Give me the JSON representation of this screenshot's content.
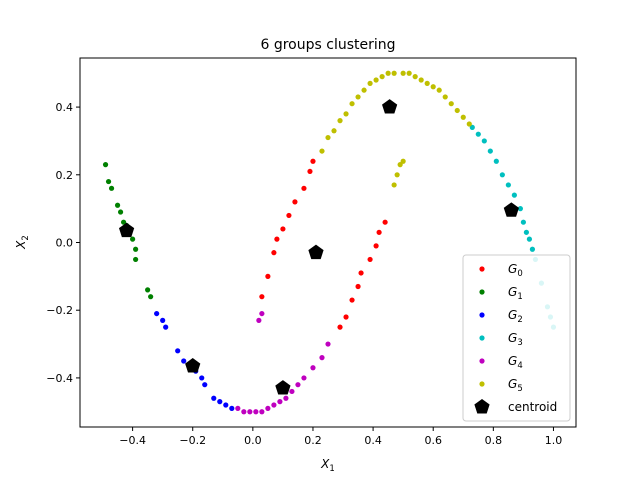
{
  "chart_data": {
    "type": "scatter",
    "title": "6 groups clustering",
    "xlabel": "X_1",
    "ylabel": "X_2",
    "xlim": [
      -0.575,
      1.075
    ],
    "ylim": [
      -0.545,
      0.545
    ],
    "xticks": [
      -0.4,
      -0.2,
      0.0,
      0.2,
      0.4,
      0.6,
      0.8,
      1.0
    ],
    "xtick_labels": [
      "−0.4",
      "−0.2",
      "0.0",
      "0.2",
      "0.4",
      "0.6",
      "0.8",
      "1.0"
    ],
    "yticks": [
      -0.4,
      -0.2,
      0.0,
      0.2,
      0.4
    ],
    "ytick_labels": [
      "−0.4",
      "−0.2",
      "0.0",
      "0.2",
      "0.4"
    ],
    "grid": false,
    "legend_position": "lower-right",
    "series": [
      {
        "name": "G0",
        "color": "#ff0000",
        "marker": "dot",
        "points": [
          [
            0.03,
            -0.16
          ],
          [
            0.05,
            -0.1
          ],
          [
            0.07,
            -0.03
          ],
          [
            0.08,
            0.01
          ],
          [
            0.1,
            0.04
          ],
          [
            0.12,
            0.08
          ],
          [
            0.14,
            0.12
          ],
          [
            0.17,
            0.16
          ],
          [
            0.19,
            0.21
          ],
          [
            0.2,
            0.24
          ],
          [
            0.29,
            -0.25
          ],
          [
            0.31,
            -0.22
          ],
          [
            0.33,
            -0.17
          ],
          [
            0.35,
            -0.13
          ],
          [
            0.36,
            -0.09
          ],
          [
            0.39,
            -0.05
          ],
          [
            0.41,
            -0.01
          ],
          [
            0.42,
            0.03
          ],
          [
            0.44,
            0.06
          ]
        ]
      },
      {
        "name": "G1",
        "color": "#008000",
        "marker": "dot",
        "points": [
          [
            -0.49,
            0.23
          ],
          [
            -0.48,
            0.18
          ],
          [
            -0.47,
            0.16
          ],
          [
            -0.45,
            0.11
          ],
          [
            -0.44,
            0.09
          ],
          [
            -0.43,
            0.06
          ],
          [
            -0.42,
            0.05
          ],
          [
            -0.41,
            0.03
          ],
          [
            -0.4,
            0.01
          ],
          [
            -0.39,
            -0.02
          ],
          [
            -0.39,
            -0.05
          ],
          [
            -0.35,
            -0.14
          ],
          [
            -0.34,
            -0.16
          ]
        ]
      },
      {
        "name": "G2",
        "color": "#0000ff",
        "marker": "dot",
        "points": [
          [
            -0.32,
            -0.21
          ],
          [
            -0.3,
            -0.23
          ],
          [
            -0.29,
            -0.25
          ],
          [
            -0.25,
            -0.32
          ],
          [
            -0.23,
            -0.35
          ],
          [
            -0.21,
            -0.37
          ],
          [
            -0.19,
            -0.38
          ],
          [
            -0.17,
            -0.4
          ],
          [
            -0.16,
            -0.42
          ],
          [
            -0.13,
            -0.46
          ],
          [
            -0.11,
            -0.47
          ],
          [
            -0.09,
            -0.48
          ],
          [
            -0.07,
            -0.49
          ]
        ]
      },
      {
        "name": "G3",
        "color": "#00bfbf",
        "marker": "dot",
        "points": [
          [
            0.73,
            0.34
          ],
          [
            0.75,
            0.32
          ],
          [
            0.77,
            0.3
          ],
          [
            0.79,
            0.27
          ],
          [
            0.81,
            0.24
          ],
          [
            0.83,
            0.2
          ],
          [
            0.85,
            0.17
          ],
          [
            0.87,
            0.14
          ],
          [
            0.89,
            0.1
          ],
          [
            0.9,
            0.06
          ],
          [
            0.91,
            0.03
          ],
          [
            0.92,
            0.01
          ],
          [
            0.93,
            -0.02
          ],
          [
            0.94,
            -0.05
          ],
          [
            0.96,
            -0.12
          ],
          [
            0.98,
            -0.19
          ],
          [
            0.99,
            -0.22
          ],
          [
            1.0,
            -0.25
          ]
        ]
      },
      {
        "name": "G4",
        "color": "#bf00bf",
        "marker": "dot",
        "points": [
          [
            -0.05,
            -0.49
          ],
          [
            -0.03,
            -0.5
          ],
          [
            -0.01,
            -0.5
          ],
          [
            0.01,
            -0.5
          ],
          [
            0.03,
            -0.5
          ],
          [
            0.05,
            -0.49
          ],
          [
            0.07,
            -0.48
          ],
          [
            0.09,
            -0.47
          ],
          [
            0.11,
            -0.46
          ],
          [
            0.13,
            -0.44
          ],
          [
            0.15,
            -0.42
          ],
          [
            0.17,
            -0.4
          ],
          [
            0.2,
            -0.37
          ],
          [
            0.23,
            -0.34
          ],
          [
            0.25,
            -0.3
          ],
          [
            0.02,
            -0.23
          ],
          [
            0.03,
            -0.21
          ]
        ]
      },
      {
        "name": "G5",
        "color": "#bfbf00",
        "marker": "dot",
        "points": [
          [
            0.23,
            0.27
          ],
          [
            0.25,
            0.31
          ],
          [
            0.27,
            0.33
          ],
          [
            0.29,
            0.36
          ],
          [
            0.31,
            0.38
          ],
          [
            0.33,
            0.41
          ],
          [
            0.35,
            0.43
          ],
          [
            0.37,
            0.45
          ],
          [
            0.39,
            0.47
          ],
          [
            0.41,
            0.48
          ],
          [
            0.43,
            0.49
          ],
          [
            0.45,
            0.5
          ],
          [
            0.47,
            0.5
          ],
          [
            0.5,
            0.5
          ],
          [
            0.52,
            0.5
          ],
          [
            0.54,
            0.49
          ],
          [
            0.56,
            0.48
          ],
          [
            0.58,
            0.47
          ],
          [
            0.6,
            0.46
          ],
          [
            0.62,
            0.45
          ],
          [
            0.64,
            0.43
          ],
          [
            0.66,
            0.41
          ],
          [
            0.68,
            0.39
          ],
          [
            0.7,
            0.37
          ],
          [
            0.72,
            0.35
          ],
          [
            0.47,
            0.17
          ],
          [
            0.48,
            0.2
          ],
          [
            0.49,
            0.23
          ],
          [
            0.5,
            0.24
          ]
        ]
      },
      {
        "name": "centroid",
        "color": "#000000",
        "marker": "pentagon",
        "points": [
          [
            0.21,
            -0.03
          ],
          [
            -0.42,
            0.035
          ],
          [
            -0.2,
            -0.365
          ],
          [
            0.86,
            0.095
          ],
          [
            0.1,
            -0.43
          ],
          [
            0.455,
            0.4
          ]
        ]
      }
    ]
  }
}
